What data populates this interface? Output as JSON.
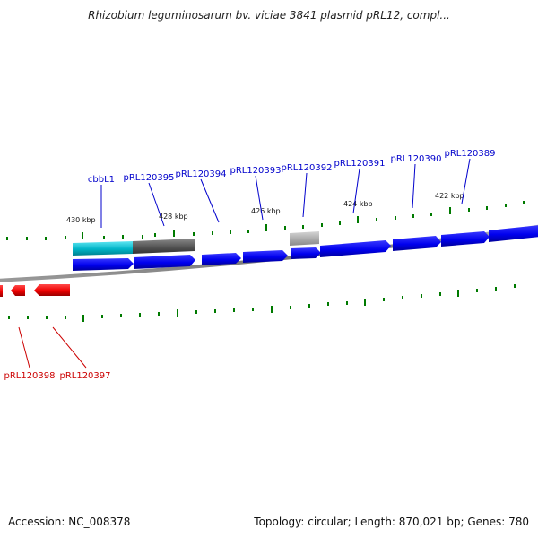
{
  "header": {
    "title": "Rhizobium leguminosarum bv. viciae 3841 plasmid pRL12, compl..."
  },
  "footer": {
    "accession": "Accession: NC_008378",
    "summary": "Topology: circular; Length: 870,021 bp; Genes: 780"
  },
  "colors": {
    "forward_gene": "#0000ee",
    "reverse_gene": "#ee0000",
    "cyan_feature": "#00b5c8",
    "dark_grey_feature": "#555555",
    "light_grey_feature": "#a8a8a8",
    "forward_label": "#0000cc",
    "reverse_label": "#cc0000",
    "tick": "#007a00",
    "backbone": "#777777"
  },
  "scale": {
    "ticks": [
      {
        "label": "430 kbp"
      },
      {
        "label": "428 kbp"
      },
      {
        "label": "426 kbp"
      },
      {
        "label": "424 kbp"
      },
      {
        "label": "422 kbp"
      }
    ]
  },
  "gene_labels": {
    "forward": [
      {
        "name": "cbbL1"
      },
      {
        "name": "pRL120395"
      },
      {
        "name": "pRL120394"
      },
      {
        "name": "pRL120393"
      },
      {
        "name": "pRL120392"
      },
      {
        "name": "pRL120391"
      },
      {
        "name": "pRL120390"
      },
      {
        "name": "pRL120389"
      }
    ],
    "reverse": [
      {
        "name": "pRL120398"
      },
      {
        "name": "pRL120397"
      }
    ]
  }
}
